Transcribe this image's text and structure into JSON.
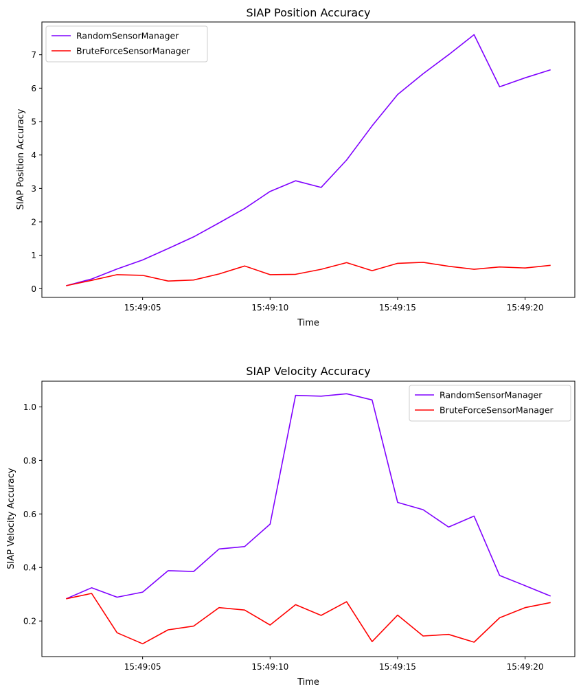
{
  "chart_data": [
    {
      "type": "line",
      "title": "SIAP Position Accuracy",
      "xlabel": "Time",
      "ylabel": "SIAP Position Accuracy",
      "x": [
        "15:49:02",
        "15:49:03",
        "15:49:04",
        "15:49:05",
        "15:49:06",
        "15:49:07",
        "15:49:08",
        "15:49:09",
        "15:49:10",
        "15:49:11",
        "15:49:12",
        "15:49:13",
        "15:49:14",
        "15:49:15",
        "15:49:16",
        "15:49:17",
        "15:49:18",
        "15:49:19",
        "15:49:20",
        "15:49:21"
      ],
      "xticks": [
        "15:49:05",
        "15:49:10",
        "15:49:15",
        "15:49:20"
      ],
      "xlim": [
        "15:49:01.05",
        "15:49:21.95"
      ],
      "yticks": [
        0,
        1,
        2,
        3,
        4,
        5,
        6,
        7
      ],
      "ylim": [
        -0.26,
        7.98
      ],
      "grid": false,
      "legend": "upper left",
      "series": [
        {
          "name": "RandomSensorManager",
          "color": "#7f00ff",
          "values": [
            0.09,
            0.29,
            0.59,
            0.86,
            1.2,
            1.55,
            1.97,
            2.4,
            2.91,
            3.23,
            3.03,
            3.85,
            4.87,
            5.81,
            6.43,
            7.0,
            7.6,
            6.04,
            6.31,
            6.55
          ]
        },
        {
          "name": "BruteForceSensorManager",
          "color": "#ff0000",
          "values": [
            0.09,
            0.25,
            0.42,
            0.4,
            0.23,
            0.26,
            0.44,
            0.68,
            0.42,
            0.43,
            0.58,
            0.78,
            0.54,
            0.76,
            0.79,
            0.67,
            0.58,
            0.65,
            0.62,
            0.7
          ]
        }
      ]
    },
    {
      "type": "line",
      "title": "SIAP Velocity Accuracy",
      "xlabel": "Time",
      "ylabel": "SIAP Velocity Accuracy",
      "x": [
        "15:49:02",
        "15:49:03",
        "15:49:04",
        "15:49:05",
        "15:49:06",
        "15:49:07",
        "15:49:08",
        "15:49:09",
        "15:49:10",
        "15:49:11",
        "15:49:12",
        "15:49:13",
        "15:49:14",
        "15:49:15",
        "15:49:16",
        "15:49:17",
        "15:49:18",
        "15:49:19",
        "15:49:20",
        "15:49:21"
      ],
      "xticks": [
        "15:49:05",
        "15:49:10",
        "15:49:15",
        "15:49:20"
      ],
      "xlim": [
        "15:49:01.05",
        "15:49:21.95"
      ],
      "yticks": [
        0.2,
        0.4,
        0.6,
        0.8,
        1.0
      ],
      "ytick_labels": [
        "0.2",
        "0.4",
        "0.6",
        "0.8",
        "1.0"
      ],
      "ylim": [
        0.067,
        1.096
      ],
      "grid": false,
      "legend": "upper right",
      "series": [
        {
          "name": "RandomSensorManager",
          "color": "#7f00ff",
          "values": [
            0.283,
            0.324,
            0.289,
            0.308,
            0.388,
            0.385,
            0.469,
            0.478,
            0.562,
            1.043,
            1.04,
            1.049,
            1.026,
            0.643,
            0.616,
            0.551,
            0.592,
            0.37,
            0.332,
            0.293
          ]
        },
        {
          "name": "BruteForceSensorManager",
          "color": "#ff0000",
          "values": [
            0.283,
            0.303,
            0.156,
            0.115,
            0.167,
            0.181,
            0.25,
            0.241,
            0.185,
            0.261,
            0.221,
            0.272,
            0.123,
            0.222,
            0.144,
            0.15,
            0.121,
            0.212,
            0.25,
            0.269
          ]
        }
      ]
    }
  ]
}
